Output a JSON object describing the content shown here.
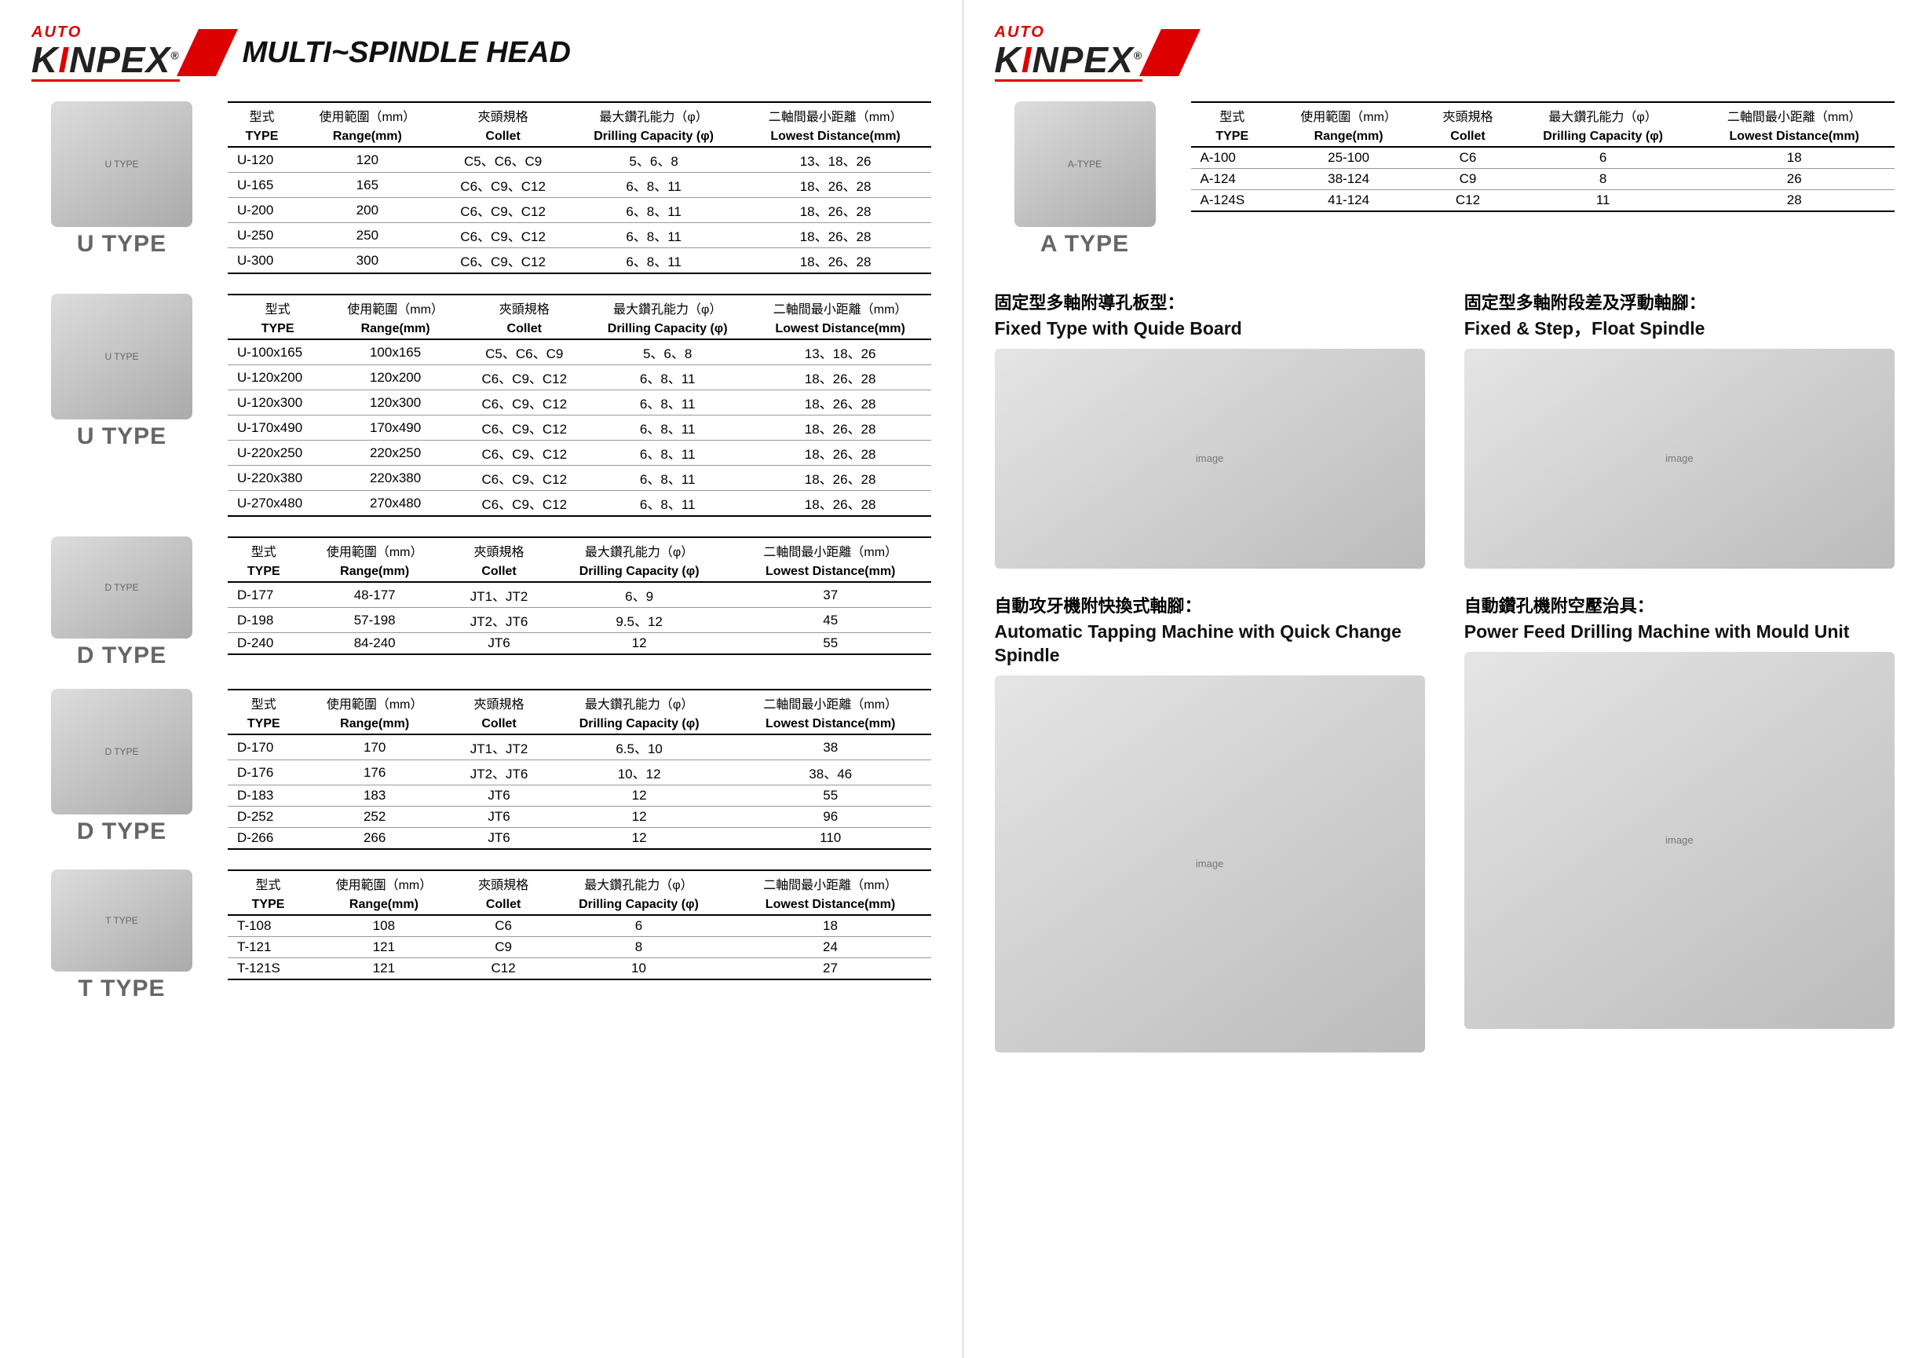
{
  "logo": {
    "auto": "AUTO",
    "name_pre": "K",
    "name_red": "I",
    "name_post": "NPEX",
    "reg": "®"
  },
  "page_title": "MULTI~SPINDLE HEAD",
  "col_headers_zh": [
    "型式",
    "使用範圍（mm）",
    "夾頭規格",
    "最大鑽孔能力（φ）",
    "二軸間最小距離（mm）"
  ],
  "col_headers_en": [
    "TYPE",
    "Range(mm)",
    "Collet",
    "Drilling Capacity (φ)",
    "Lowest Distance(mm)"
  ],
  "sections": [
    {
      "label": "U TYPE",
      "rows": [
        [
          "U-120",
          "120",
          "C5、C6、C9",
          "5、6、8",
          "13、18、26"
        ],
        [
          "U-165",
          "165",
          "C6、C9、C12",
          "6、8、11",
          "18、26、28"
        ],
        [
          "U-200",
          "200",
          "C6、C9、C12",
          "6、8、11",
          "18、26、28"
        ],
        [
          "U-250",
          "250",
          "C6、C9、C12",
          "6、8、11",
          "18、26、28"
        ],
        [
          "U-300",
          "300",
          "C6、C9、C12",
          "6、8、11",
          "18、26、28"
        ]
      ]
    },
    {
      "label": "U TYPE",
      "rows": [
        [
          "U-100x165",
          "100x165",
          "C5、C6、C9",
          "5、6、8",
          "13、18、26"
        ],
        [
          "U-120x200",
          "120x200",
          "C6、C9、C12",
          "6、8、11",
          "18、26、28"
        ],
        [
          "U-120x300",
          "120x300",
          "C6、C9、C12",
          "6、8、11",
          "18、26、28"
        ],
        [
          "U-170x490",
          "170x490",
          "C6、C9、C12",
          "6、8、11",
          "18、26、28"
        ],
        [
          "U-220x250",
          "220x250",
          "C6、C9、C12",
          "6、8、11",
          "18、26、28"
        ],
        [
          "U-220x380",
          "220x380",
          "C6、C9、C12",
          "6、8、11",
          "18、26、28"
        ],
        [
          "U-270x480",
          "270x480",
          "C6、C9、C12",
          "6、8、11",
          "18、26、28"
        ]
      ]
    },
    {
      "label": "D TYPE",
      "rows": [
        [
          "D-177",
          "48-177",
          "JT1、JT2",
          "6、9",
          "37"
        ],
        [
          "D-198",
          "57-198",
          "JT2、JT6",
          "9.5、12",
          "45"
        ],
        [
          "D-240",
          "84-240",
          "JT6",
          "12",
          "55"
        ]
      ]
    },
    {
      "label": "D TYPE",
      "rows": [
        [
          "D-170",
          "170",
          "JT1、JT2",
          "6.5、10",
          "38"
        ],
        [
          "D-176",
          "176",
          "JT2、JT6",
          "10、12",
          "38、46"
        ],
        [
          "D-183",
          "183",
          "JT6",
          "12",
          "55"
        ],
        [
          "D-252",
          "252",
          "JT6",
          "12",
          "96"
        ],
        [
          "D-266",
          "266",
          "JT6",
          "12",
          "110"
        ]
      ]
    },
    {
      "label": "T TYPE",
      "rows": [
        [
          "T-108",
          "108",
          "C6",
          "6",
          "18"
        ],
        [
          "T-121",
          "121",
          "C9",
          "8",
          "24"
        ],
        [
          "T-121S",
          "121",
          "C12",
          "10",
          "27"
        ]
      ]
    }
  ],
  "a_type": {
    "label": "A TYPE",
    "rows": [
      [
        "A-100",
        "25-100",
        "C6",
        "6",
        "18"
      ],
      [
        "A-124",
        "38-124",
        "C9",
        "8",
        "26"
      ],
      [
        "A-124S",
        "41-124",
        "C12",
        "11",
        "28"
      ]
    ]
  },
  "products": [
    {
      "zh": "固定型多軸附導孔板型：",
      "en": "Fixed Type with Quide Board"
    },
    {
      "zh": "固定型多軸附段差及浮動軸腳：",
      "en": "Fixed & Step，Float Spindle"
    },
    {
      "zh": "自動攻牙機附快換式軸腳：",
      "en": "Automatic Tapping Machine with Quick Change Spindle"
    },
    {
      "zh": "自動鑽孔機附空壓治具：",
      "en": "Power Feed Drilling Machine with Mould Unit"
    }
  ],
  "styling": {
    "accent_color": "#d00",
    "text_color": "#111",
    "label_gray": "#666",
    "border_heavy": "2px solid #000",
    "border_light": "1px solid #999",
    "title_fontsize": 38,
    "type_label_fontsize": 30,
    "table_fontsize": 17,
    "background": "#ffffff"
  }
}
